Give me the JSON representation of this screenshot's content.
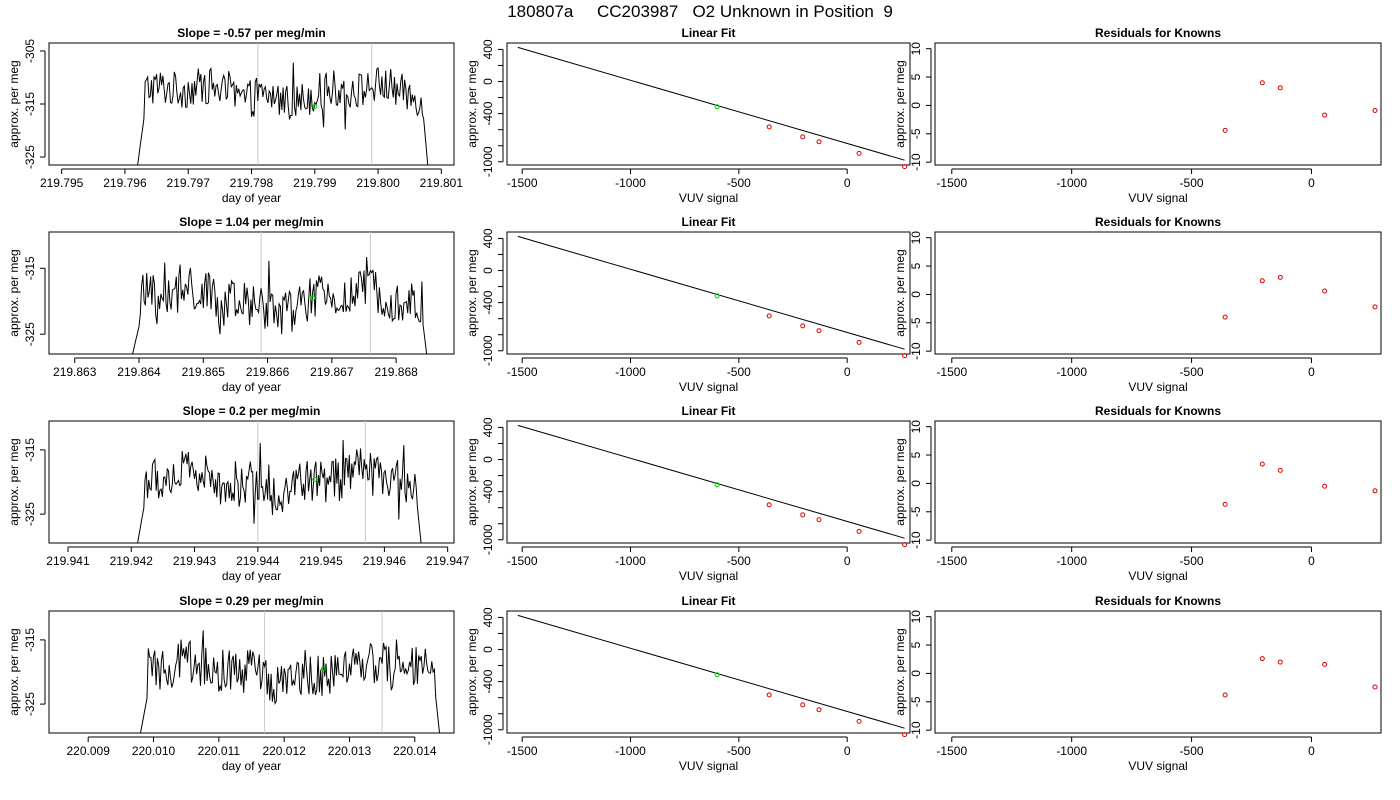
{
  "title": "180807a     CC203987   O2 Unknown in Position  9",
  "colors": {
    "trace": "#000000",
    "vline": "#c8c8c8",
    "unknown": "#00dd00",
    "known": "#dd0000",
    "fitline": "#000000"
  },
  "chart_data": [
    {
      "type": "line",
      "panel": "timeseries",
      "row": 0,
      "title": "Slope =  -0.57  per meg/min",
      "xlabel": "day of year",
      "ylabel": "approx. per meg",
      "xlim": [
        219.7948,
        219.8012
      ],
      "ylim": [
        -326.5,
        -303.5
      ],
      "xticks": [
        219.795,
        219.796,
        219.797,
        219.798,
        219.799,
        219.8,
        219.801
      ],
      "xtick_labels": [
        "219.795",
        "219.796",
        "219.797",
        "219.798",
        "219.799",
        "219.800",
        "219.801"
      ],
      "yticks": [
        -305,
        -315,
        -325
      ],
      "ytick_labels": [
        "-305",
        "-315",
        "-325"
      ],
      "trace_x_range": [
        219.7962,
        219.8008
      ],
      "trace_y_range": [
        -326.5,
        -307.2
      ],
      "trace_level": -313,
      "vlines": [
        219.7981,
        219.7999
      ],
      "unknown_point": {
        "x": 219.799,
        "y": -315.5
      }
    },
    {
      "type": "line",
      "panel": "timeseries",
      "row": 1,
      "title": "Slope =  1.04  per meg/min",
      "xlabel": "day of year",
      "ylabel": "approx. per meg",
      "xlim": [
        219.8626,
        219.8689
      ],
      "ylim": [
        -328.0,
        -309.5
      ],
      "xticks": [
        219.863,
        219.864,
        219.865,
        219.866,
        219.867,
        219.868
      ],
      "xtick_labels": [
        "219.863",
        "219.864",
        "219.865",
        "219.866",
        "219.867",
        "219.868"
      ],
      "yticks": [
        -315,
        -325
      ],
      "ytick_labels": [
        "-315",
        "-325"
      ],
      "trace_x_range": [
        219.8639,
        219.8685
      ],
      "trace_y_range": [
        -328.0,
        -311.5
      ],
      "trace_level": -320,
      "vlines": [
        219.8659,
        219.8676
      ],
      "unknown_point": {
        "x": 219.8667,
        "y": -319.5
      }
    },
    {
      "type": "line",
      "panel": "timeseries",
      "row": 2,
      "title": "Slope =  0.2  per meg/min",
      "xlabel": "day of year",
      "ylabel": "approx. per meg",
      "xlim": [
        219.9407,
        219.9471
      ],
      "ylim": [
        -329.5,
        -310.5
      ],
      "xticks": [
        219.941,
        219.942,
        219.943,
        219.944,
        219.945,
        219.946,
        219.947
      ],
      "xtick_labels": [
        "219.941",
        "219.942",
        "219.943",
        "219.944",
        "219.945",
        "219.946",
        "219.947"
      ],
      "yticks": [
        -315,
        -325
      ],
      "ytick_labels": [
        "-315",
        "-325"
      ],
      "trace_x_range": [
        219.9421,
        219.9466
      ],
      "trace_y_range": [
        -329.5,
        -312.5
      ],
      "trace_level": -320,
      "vlines": [
        219.944,
        219.9457
      ],
      "unknown_point": {
        "x": 219.9449,
        "y": -319.6
      }
    },
    {
      "type": "line",
      "panel": "timeseries",
      "row": 3,
      "title": "Slope =  0.29  per meg/min",
      "xlabel": "day of year",
      "ylabel": "approx. per meg",
      "xlim": [
        220.0084,
        220.0146
      ],
      "ylim": [
        -329.5,
        -310.5
      ],
      "xticks": [
        220.009,
        220.01,
        220.011,
        220.012,
        220.013,
        220.014
      ],
      "xtick_labels": [
        "220.009",
        "220.010",
        "220.011",
        "220.012",
        "220.013",
        "220.014"
      ],
      "yticks": [
        -315,
        -325
      ],
      "ytick_labels": [
        "-315",
        "-325"
      ],
      "trace_x_range": [
        220.0098,
        220.0144
      ],
      "trace_y_range": [
        -329.5,
        -313.5
      ],
      "trace_level": -320,
      "vlines": [
        220.0117,
        220.0135
      ],
      "unknown_point": {
        "x": 220.0126,
        "y": -319.5
      }
    },
    {
      "type": "scatter",
      "panel": "fit",
      "rows": [
        0,
        1,
        2,
        3
      ],
      "title": "Linear Fit",
      "xlabel": "VUV signal",
      "ylabel": "approx. per meg",
      "xlim": [
        -1570,
        290
      ],
      "ylim": [
        -1040,
        480
      ],
      "xticks": [
        -1500,
        -1000,
        -500,
        0
      ],
      "xtick_labels": [
        "-1500",
        "-1000",
        "-500",
        "0"
      ],
      "yticks": [
        400,
        0,
        -400,
        -1000
      ],
      "ytick_labels": [
        "400",
        "0",
        "-400",
        "-1000"
      ],
      "yminor_ticks": [
        200,
        -200,
        -600,
        -800
      ],
      "fit_line": {
        "x": [
          -1520,
          265
        ],
        "y": [
          425,
          -980
        ]
      },
      "knowns": {
        "x": [
          -360,
          -205,
          -130,
          55,
          265
        ],
        "y": [
          -565,
          -690,
          -750,
          -895,
          -1060
        ]
      },
      "unknown": {
        "x": [
          -600
        ],
        "y": [
          -315
        ]
      }
    },
    {
      "type": "scatter",
      "panel": "residuals",
      "title": "Residuals for Knowns",
      "xlabel": "VUV signal",
      "ylabel": "approx. per meg",
      "xlim": [
        -1570,
        290
      ],
      "ylim": [
        -10.5,
        11
      ],
      "xticks": [
        -1500,
        -1000,
        -500,
        0
      ],
      "xtick_labels": [
        "-1500",
        "-1000",
        "-500",
        "0"
      ],
      "yticks": [
        10,
        5,
        0,
        -5,
        -10
      ],
      "ytick_labels": [
        "10",
        "5",
        "0",
        "-5",
        "-10"
      ],
      "rows": [
        {
          "x": [
            -360,
            -205,
            -130,
            55,
            265
          ],
          "y": [
            -4.4,
            4.0,
            3.1,
            -1.7,
            -0.9
          ]
        },
        {
          "x": [
            -360,
            -205,
            -130,
            55,
            265
          ],
          "y": [
            -4.0,
            2.4,
            3.0,
            0.6,
            -2.2
          ]
        },
        {
          "x": [
            -360,
            -205,
            -130,
            55,
            265
          ],
          "y": [
            -3.7,
            3.4,
            2.3,
            -0.5,
            -1.3
          ]
        },
        {
          "x": [
            -360,
            -205,
            -130,
            55,
            265
          ],
          "y": [
            -3.8,
            2.6,
            2.0,
            1.6,
            -2.4
          ]
        }
      ]
    }
  ]
}
